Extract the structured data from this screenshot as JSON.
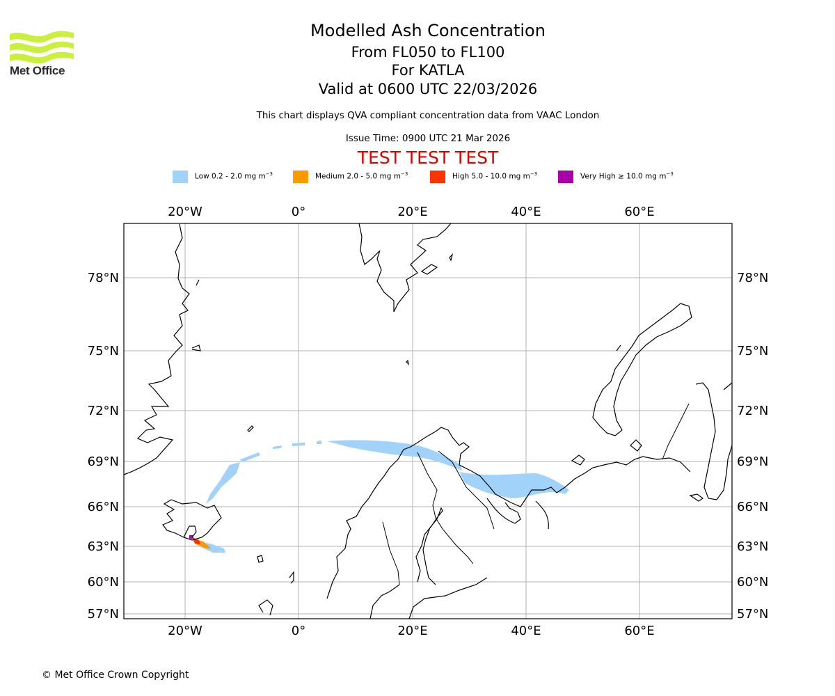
{
  "logo": {
    "text": "Met Office",
    "color": "#c8f03c"
  },
  "title": {
    "line1": "Modelled Ash Concentration",
    "line2": "From FL050 to FL100",
    "line3": "For KATLA",
    "line4": "Valid at 0600 UTC 22/03/2026"
  },
  "info_text": "This chart displays QVA compliant concentration data from VAAC London",
  "issue_time": "Issue Time: 0900 UTC 21 Mar 2026",
  "test_banner": "TEST TEST TEST",
  "legend": [
    {
      "label": "Low 0.2 - 2.0 mg m",
      "sup": "−3",
      "color": "#a0d2fa"
    },
    {
      "label": "Medium 2.0 - 5.0 mg m",
      "sup": "−3",
      "color": "#ff9900"
    },
    {
      "label": "High 5.0 - 10.0 mg m",
      "sup": "−3",
      "color": "#ff3300"
    },
    {
      "label": "Very High ≥ 10.0 mg m",
      "sup": "−3",
      "color": "#aa00aa"
    }
  ],
  "map": {
    "lon_labels": [
      "20°W",
      "0°",
      "20°E",
      "40°E",
      "60°E"
    ],
    "lat_labels": [
      "78°N",
      "75°N",
      "72°N",
      "69°N",
      "66°N",
      "63°N",
      "60°N",
      "57°N"
    ]
  },
  "copyright": "© Met Office Crown Copyright"
}
